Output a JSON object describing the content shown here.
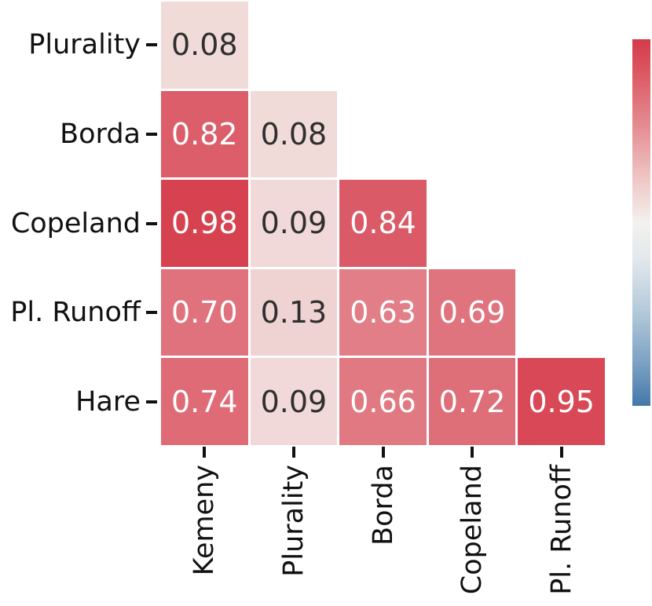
{
  "chart_data": {
    "type": "heatmap",
    "title": "",
    "rows": [
      "Plurality",
      "Borda",
      "Copeland",
      "Pl. Runoff",
      "Hare"
    ],
    "cols": [
      "Kemeny",
      "Plurality",
      "Borda",
      "Copeland",
      "Pl. Runoff"
    ],
    "values": [
      [
        0.08,
        null,
        null,
        null,
        null
      ],
      [
        0.82,
        0.08,
        null,
        null,
        null
      ],
      [
        0.98,
        0.09,
        0.84,
        null,
        null
      ],
      [
        0.7,
        0.13,
        0.63,
        0.69,
        null
      ],
      [
        0.74,
        0.09,
        0.66,
        0.72,
        0.95
      ]
    ],
    "value_decimals": 2,
    "shape": "lower-triangle",
    "grid": false,
    "colormap": {
      "anchor_zero": "#f2e8e5",
      "anchor_mid": "#e5949b",
      "anchor_one": "#d63f4e"
    },
    "annotation_colors": {
      "dark_text": "#2f2f2f",
      "light_text": "#ffffff",
      "light_text_threshold": 0.4
    },
    "axis": {
      "text_color": "#111111",
      "tick_color": "#111111"
    },
    "colorbar": {
      "position": "right",
      "tick_labels": [],
      "gradient_stops": [
        {
          "color": "#d43b4b",
          "pos": 0
        },
        {
          "color": "#dc5b65",
          "pos": 10
        },
        {
          "color": "#e48e93",
          "pos": 24
        },
        {
          "color": "#efc6c4",
          "pos": 38
        },
        {
          "color": "#f4f1ee",
          "pos": 50
        },
        {
          "color": "#e2e8eb",
          "pos": 60
        },
        {
          "color": "#b4cada",
          "pos": 74
        },
        {
          "color": "#7da2c3",
          "pos": 88
        },
        {
          "color": "#4478aa",
          "pos": 100
        }
      ]
    }
  }
}
